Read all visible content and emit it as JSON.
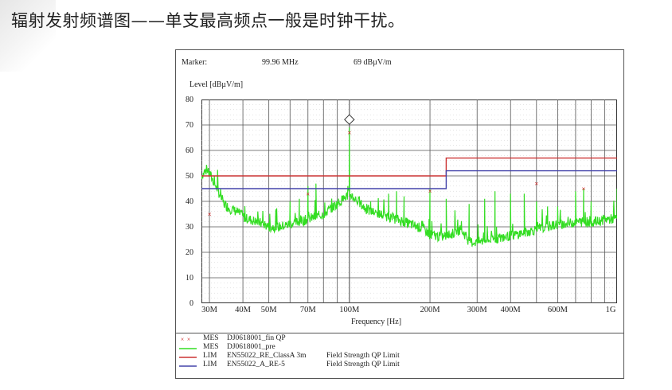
{
  "slide": {
    "title": "辐射发射频谱图——单支最高频点一般是时钟干扰。"
  },
  "report": {
    "marker_label": "Marker:",
    "marker_freq": "99.96 MHz",
    "marker_level": "69 dBµV/m"
  },
  "colors": {
    "measurement": "#33dd22",
    "qp_marks": "#cc2222",
    "limit_class_a": "#cc3333",
    "limit_re5": "#4444aa",
    "grid": "#555555"
  },
  "chart_data": {
    "type": "line",
    "ylabel": "Level [dBµV/m]",
    "xlabel": "Frequency [Hz]",
    "x_scale": "log",
    "xlim": [
      28,
      1000
    ],
    "ylim": [
      0,
      80
    ],
    "y_ticks": [
      "80",
      "70",
      "60",
      "50",
      "40",
      "30",
      "20",
      "10",
      "0"
    ],
    "x_ticks": [
      {
        "label": "30M",
        "value": 30
      },
      {
        "label": "40M",
        "value": 40
      },
      {
        "label": "50M",
        "value": 50
      },
      {
        "label": "70M",
        "value": 70
      },
      {
        "label": "100M",
        "value": 100
      },
      {
        "label": "200M",
        "value": 200
      },
      {
        "label": "300M",
        "value": 300
      },
      {
        "label": "400M",
        "value": 400
      },
      {
        "label": "600M",
        "value": 600
      },
      {
        "label": "1G",
        "value": 1000
      }
    ],
    "limit_lines": [
      {
        "name": "EN55022_RE_ClassA 3m",
        "points": [
          [
            28,
            50
          ],
          [
            230,
            50
          ],
          [
            230,
            57
          ],
          [
            1000,
            57
          ]
        ]
      },
      {
        "name": "EN55022_A_RE-5",
        "points": [
          [
            28,
            45
          ],
          [
            230,
            45
          ],
          [
            230,
            52
          ],
          [
            1000,
            52
          ]
        ]
      }
    ],
    "qp_points": [
      {
        "x": 30,
        "y": 35
      },
      {
        "x": 70,
        "y": 43
      },
      {
        "x": 100,
        "y": 67
      },
      {
        "x": 200,
        "y": 44
      },
      {
        "x": 500,
        "y": 47
      },
      {
        "x": 750,
        "y": 45
      }
    ],
    "marker_point": {
      "x": 99.96,
      "y": 69
    },
    "measurement": {
      "name": "DJ0618001_pre",
      "baseline": [
        [
          28,
          50
        ],
        [
          29,
          52
        ],
        [
          30,
          51
        ],
        [
          31,
          48
        ],
        [
          32,
          45
        ],
        [
          33,
          42
        ],
        [
          34,
          39
        ],
        [
          36,
          37
        ],
        [
          38,
          36
        ],
        [
          40,
          34
        ],
        [
          42,
          33
        ],
        [
          45,
          32
        ],
        [
          48,
          31
        ],
        [
          50,
          30
        ],
        [
          55,
          30
        ],
        [
          60,
          31
        ],
        [
          65,
          32
        ],
        [
          70,
          33
        ],
        [
          75,
          34
        ],
        [
          80,
          35
        ],
        [
          85,
          37
        ],
        [
          90,
          39
        ],
        [
          95,
          41
        ],
        [
          100,
          43
        ],
        [
          105,
          41
        ],
        [
          110,
          39
        ],
        [
          115,
          37
        ],
        [
          120,
          36
        ],
        [
          130,
          35
        ],
        [
          140,
          34
        ],
        [
          150,
          33
        ],
        [
          160,
          32
        ],
        [
          170,
          31
        ],
        [
          180,
          30
        ],
        [
          190,
          29
        ],
        [
          200,
          27
        ],
        [
          220,
          26
        ],
        [
          240,
          27
        ],
        [
          260,
          29
        ],
        [
          270,
          27
        ],
        [
          280,
          24
        ],
        [
          300,
          24
        ],
        [
          340,
          25
        ],
        [
          380,
          26
        ],
        [
          420,
          27
        ],
        [
          460,
          28
        ],
        [
          500,
          29
        ],
        [
          550,
          30
        ],
        [
          600,
          31
        ],
        [
          650,
          31
        ],
        [
          700,
          32
        ],
        [
          750,
          32
        ],
        [
          800,
          32
        ],
        [
          850,
          32
        ],
        [
          900,
          33
        ],
        [
          1000,
          33
        ]
      ],
      "spikes": [
        [
          33,
          45
        ],
        [
          60,
          40
        ],
        [
          65,
          41
        ],
        [
          70,
          46
        ],
        [
          75,
          47
        ],
        [
          99.96,
          69
        ],
        [
          120,
          40
        ],
        [
          140,
          43
        ],
        [
          150,
          44
        ],
        [
          160,
          42
        ],
        [
          200,
          45
        ],
        [
          230,
          41
        ],
        [
          280,
          39
        ],
        [
          320,
          41
        ],
        [
          350,
          44
        ],
        [
          400,
          43
        ],
        [
          450,
          43
        ],
        [
          500,
          40
        ],
        [
          550,
          38
        ],
        [
          600,
          38
        ],
        [
          700,
          44
        ],
        [
          750,
          45
        ],
        [
          800,
          40
        ],
        [
          1000,
          45
        ]
      ]
    }
  },
  "legend": [
    {
      "tag": "MES",
      "name": "DJ0618001_fin QP",
      "desc": "",
      "kind": "marks"
    },
    {
      "tag": "MES",
      "name": "DJ0618001_pre",
      "desc": "",
      "kind": "measurement"
    },
    {
      "tag": "LIM",
      "name": "EN55022_RE_ClassA 3m",
      "desc": "Field Strength QP Limit",
      "kind": "limit_class_a"
    },
    {
      "tag": "LIM",
      "name": "EN55022_A_RE-5",
      "desc": "Field Strength QP Limit",
      "kind": "limit_re5"
    }
  ]
}
